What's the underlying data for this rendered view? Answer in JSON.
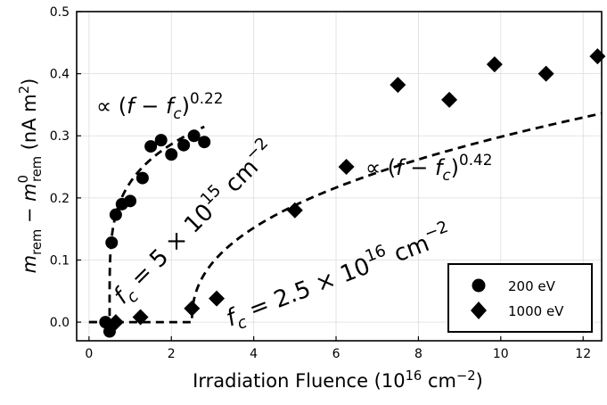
{
  "chart_data": {
    "type": "scatter",
    "xlabel_base": "Irradiation Fluence (10",
    "xlabel_exp": "16",
    "xlabel_unit": " cm",
    "xlabel_unit_exp": "−2",
    "xlabel_end": ")",
    "ylabel_m": "m",
    "ylabel_sub1": "rem",
    "ylabel_minus": " − ",
    "ylabel_m2": "m",
    "ylabel_sup2": "0",
    "ylabel_sub2": "rem",
    "ylabel_units": "  (nA m",
    "ylabel_units_exp": "2",
    "ylabel_units_end": ")",
    "xlim": [
      -0.3,
      12.45
    ],
    "ylim": [
      -0.03,
      0.5
    ],
    "x_ticks": [
      0,
      2,
      4,
      6,
      8,
      10,
      12
    ],
    "x_tick_labels": [
      "0",
      "2",
      "4",
      "6",
      "8",
      "10",
      "12"
    ],
    "y_ticks": [
      0.0,
      0.1,
      0.2,
      0.3,
      0.4,
      0.5
    ],
    "y_tick_labels": [
      "0.0",
      "0.1",
      "0.2",
      "0.3",
      "0.4",
      "0.5"
    ],
    "grid": true,
    "legend_position": "bottom-right",
    "series": [
      {
        "name": "200 eV",
        "marker": "circle",
        "color": "#000000",
        "x": [
          0.4,
          0.5,
          0.55,
          0.65,
          0.8,
          1.0,
          1.3,
          1.5,
          1.75,
          2.0,
          2.3,
          2.55,
          2.8
        ],
        "y": [
          0.0,
          -0.015,
          0.128,
          0.173,
          0.19,
          0.195,
          0.232,
          0.283,
          0.293,
          0.27,
          0.285,
          0.3,
          0.29
        ]
      },
      {
        "name": "1000 eV",
        "marker": "diamond",
        "color": "#000000",
        "x": [
          0.65,
          1.25,
          2.5,
          3.1,
          5.0,
          6.25,
          7.5,
          8.75,
          9.85,
          11.1,
          12.35
        ],
        "y": [
          0.0,
          0.008,
          0.022,
          0.038,
          0.18,
          0.25,
          0.382,
          0.358,
          0.415,
          0.4,
          0.428
        ]
      }
    ],
    "fits": [
      {
        "fc": 0.5,
        "A": 0.262,
        "exponent": 0.22,
        "x_end": 2.8
      },
      {
        "fc": 2.5,
        "A": 0.128,
        "exponent": 0.42,
        "x_end": 12.45
      }
    ],
    "annotations": {
      "fit1_prefix": "∝ (",
      "fit1_f": "f",
      "fit1_minus": " − ",
      "fit1_fc": "f",
      "fit1_fc_sub": "c",
      "fit1_close": ")",
      "fit1_exp": "0.22",
      "fit2_prefix": "∝ (",
      "fit2_f": "f",
      "fit2_minus": " − ",
      "fit2_fc": "f",
      "fit2_fc_sub": "c",
      "fit2_close": ")",
      "fit2_exp": "0.42",
      "fc1_f": "f",
      "fc1_sub": "c",
      "fc1_eq": " = 5 × 10",
      "fc1_exp": "15",
      "fc1_unit": " cm",
      "fc1_unit_exp": "−2",
      "fc2_f": "f",
      "fc2_sub": "c",
      "fc2_eq": " = 2.5 × 10",
      "fc2_exp": "16",
      "fc2_unit": " cm",
      "fc2_unit_exp": "−2"
    }
  }
}
